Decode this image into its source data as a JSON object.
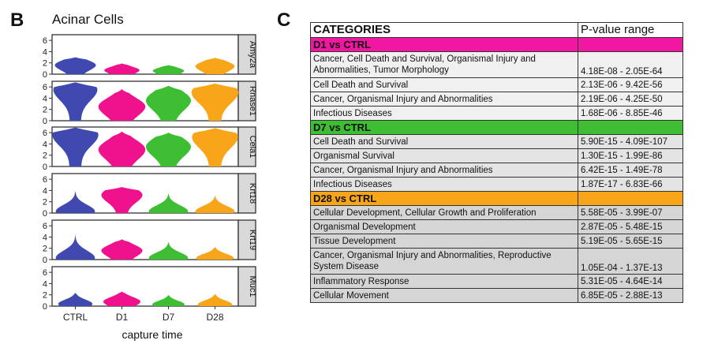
{
  "panel_b": {
    "label": "B",
    "title": "Acinar Cells",
    "xlabel": "capture time",
    "categories": [
      "CTRL",
      "D1",
      "D7",
      "D28"
    ],
    "yticks": [
      "0",
      "2",
      "4",
      "6"
    ],
    "colors": [
      "#3F49B0",
      "#F0128C",
      "#3DBE33",
      "#F8A51A"
    ],
    "strip_color": "#D9D9D9"
  },
  "chart_data": {
    "type": "violin",
    "title": "Acinar Cells",
    "xlabel": "capture time",
    "ylabel": "",
    "ylim": [
      0,
      7
    ],
    "grid": false,
    "categories": [
      "CTRL",
      "D1",
      "D7",
      "D28"
    ],
    "genes": [
      {
        "name": "Amy2a",
        "series": [
          {
            "group": "CTRL",
            "max": 3.0,
            "mode": 1.6,
            "maxhalf": 0.42
          },
          {
            "group": "D1",
            "max": 1.9,
            "mode": 0.7,
            "maxhalf": 0.36
          },
          {
            "group": "D7",
            "max": 1.6,
            "mode": 0.6,
            "maxhalf": 0.32
          },
          {
            "group": "D28",
            "max": 2.9,
            "mode": 1.4,
            "maxhalf": 0.4
          }
        ]
      },
      {
        "name": "Rnase1",
        "series": [
          {
            "group": "CTRL",
            "max": 6.8,
            "mode": 5.5,
            "maxhalf": 0.45
          },
          {
            "group": "D1",
            "max": 5.6,
            "mode": 2.5,
            "maxhalf": 0.48
          },
          {
            "group": "D7",
            "max": 6.2,
            "mode": 3.6,
            "maxhalf": 0.46
          },
          {
            "group": "D28",
            "max": 6.6,
            "mode": 5.0,
            "maxhalf": 0.48
          }
        ]
      },
      {
        "name": "Cela1",
        "series": [
          {
            "group": "CTRL",
            "max": 6.9,
            "mode": 5.6,
            "maxhalf": 0.47
          },
          {
            "group": "D1",
            "max": 6.2,
            "mode": 3.0,
            "maxhalf": 0.48
          },
          {
            "group": "D7",
            "max": 6.0,
            "mode": 3.5,
            "maxhalf": 0.46
          },
          {
            "group": "D28",
            "max": 6.8,
            "mode": 5.2,
            "maxhalf": 0.47
          }
        ]
      },
      {
        "name": "Krt18",
        "series": [
          {
            "group": "CTRL",
            "max": 4.0,
            "mode": 0.3,
            "maxhalf": 0.4
          },
          {
            "group": "D1",
            "max": 4.6,
            "mode": 3.2,
            "maxhalf": 0.42
          },
          {
            "group": "D7",
            "max": 3.6,
            "mode": 0.3,
            "maxhalf": 0.4
          },
          {
            "group": "D28",
            "max": 3.2,
            "mode": 0.3,
            "maxhalf": 0.4
          }
        ]
      },
      {
        "name": "Krt19",
        "series": [
          {
            "group": "CTRL",
            "max": 4.5,
            "mode": 0.3,
            "maxhalf": 0.4
          },
          {
            "group": "D1",
            "max": 3.6,
            "mode": 1.6,
            "maxhalf": 0.42
          },
          {
            "group": "D7",
            "max": 3.2,
            "mode": 0.3,
            "maxhalf": 0.4
          },
          {
            "group": "D28",
            "max": 2.3,
            "mode": 0.3,
            "maxhalf": 0.38
          }
        ]
      },
      {
        "name": "Muc1",
        "series": [
          {
            "group": "CTRL",
            "max": 2.4,
            "mode": 0.4,
            "maxhalf": 0.35
          },
          {
            "group": "D1",
            "max": 2.6,
            "mode": 0.8,
            "maxhalf": 0.38
          },
          {
            "group": "D7",
            "max": 2.0,
            "mode": 0.3,
            "maxhalf": 0.33
          },
          {
            "group": "D28",
            "max": 2.2,
            "mode": 0.3,
            "maxhalf": 0.35
          }
        ]
      }
    ]
  },
  "panel_c": {
    "label": "C",
    "header": {
      "categories": "CATEGORIES",
      "pvalue": "P-value range"
    },
    "groups": [
      {
        "title": "D1 vs CTRL",
        "color": "#F018A0",
        "row_bg": "#F1F0F0",
        "rows": [
          {
            "category": "Cancer, Cell Death and Survival, Organismal Injury and Abnormalities, Tumor Morphology",
            "pvalue": "4.18E-08 - 2.05E-64",
            "tall": true
          },
          {
            "category": "Cell Death and Survival",
            "pvalue": "2.13E-06 - 9.42E-56",
            "tall": false
          },
          {
            "category": "Cancer, Organismal Injury and Abnormalities",
            "pvalue": "2.19E-06 - 4.25E-50",
            "tall": false
          },
          {
            "category": "Infectious Diseases",
            "pvalue": "1.68E-06 - 8.85E-46",
            "tall": false
          }
        ]
      },
      {
        "title": "D7 vs CTRL",
        "color": "#3DBE33",
        "row_bg": "#E4E4E4",
        "rows": [
          {
            "category": "Cell Death and Survival",
            "pvalue": "5.90E-15 - 4.09E-107",
            "tall": false
          },
          {
            "category": "Organismal Survival",
            "pvalue": "1.30E-15 - 1.99E-86",
            "tall": false
          },
          {
            "category": "Cancer, Organismal Injury and Abnormalities",
            "pvalue": "6.42E-15 - 1.49E-78",
            "tall": false
          },
          {
            "category": "Infectious Diseases",
            "pvalue": "1.87E-17 - 6.83E-66",
            "tall": false
          }
        ]
      },
      {
        "title": "D28 vs CTRL",
        "color": "#F8A51A",
        "row_bg": "#D5D5D5",
        "rows": [
          {
            "category": "Cellular Development, Cellular Growth and Proliferation",
            "pvalue": "5.58E-05 - 3.99E-07",
            "tall": false
          },
          {
            "category": "Organismal Development",
            "pvalue": "2.87E-05 - 5.48E-15",
            "tall": false
          },
          {
            "category": "Tissue Development",
            "pvalue": "5.19E-05 - 5.65E-15",
            "tall": false
          },
          {
            "category": "Cancer, Organismal Injury and Abnormalities, Reproductive System Disease",
            "pvalue": "1.05E-04 - 1.37E-13",
            "tall": true
          },
          {
            "category": "Inflammatory Response",
            "pvalue": "5.31E-05 - 4.64E-14",
            "tall": false
          },
          {
            "category": "Cellular Movement",
            "pvalue": "6.85E-05 - 2.88E-13",
            "tall": false
          }
        ]
      }
    ]
  }
}
